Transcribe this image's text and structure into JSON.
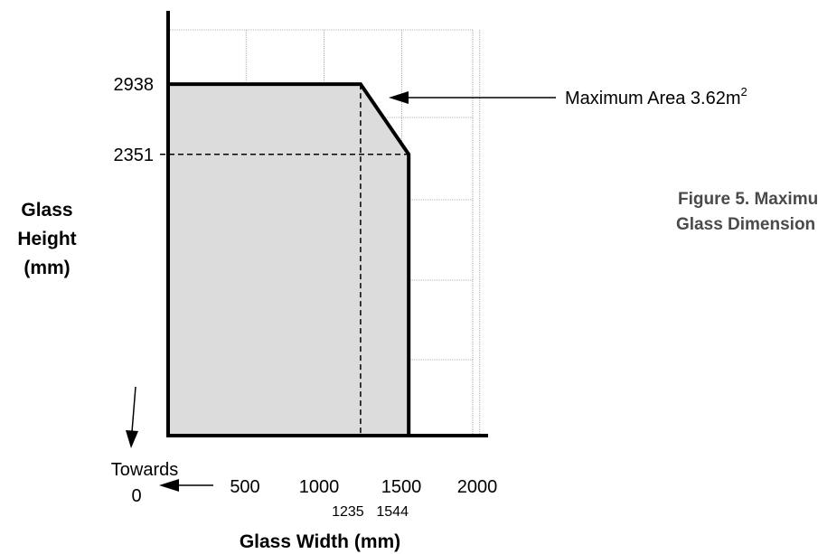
{
  "chart_data": {
    "type": "area",
    "title": "",
    "xlabel": "Glass Width (mm)",
    "ylabel": [
      "Glass",
      "Height",
      "(mm)"
    ],
    "x_ticks": [
      "500",
      "1000",
      "1500",
      "2000"
    ],
    "x_sub_ticks": [
      "1235",
      "1544"
    ],
    "y_ticks": [
      "2938",
      "2351"
    ],
    "xlim": [
      0,
      2050
    ],
    "ylim": [
      0,
      3200
    ],
    "grid": true,
    "boundary": {
      "name": "",
      "x": [
        0,
        0,
        1235,
        1544,
        1544
      ],
      "y": [
        0,
        2938,
        2938,
        2351,
        0
      ]
    },
    "reference_lines": [
      {
        "axis": "x",
        "value": 1235
      },
      {
        "axis": "y",
        "value": 2351
      }
    ],
    "annotations": {
      "max_area_text": "Maximum Area 3.62m",
      "max_area_sup": "2",
      "towards_line1": "Towards",
      "towards_line2": "0",
      "figure_line1": "Figure 5. Maximu",
      "figure_line2": "Glass Dimension"
    },
    "colors": {
      "fill": "#dcdcdc",
      "line": "#000000",
      "grid": "#9a9a9a",
      "figure_text": "#4a4a4a"
    }
  }
}
